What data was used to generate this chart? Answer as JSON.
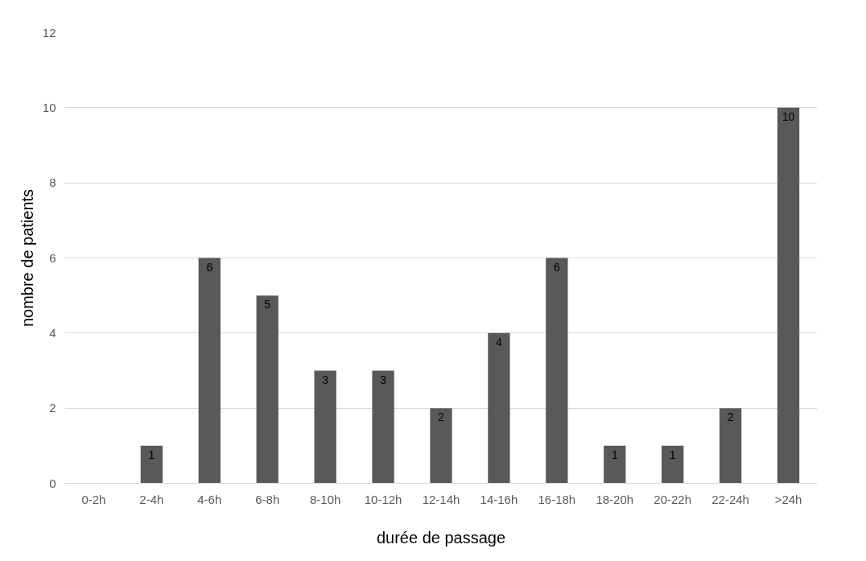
{
  "chart_data": {
    "type": "bar",
    "xlabel": "durée de passage",
    "ylabel": "nombre de patients",
    "categories": [
      "0-2h",
      "2-4h",
      "4-6h",
      "6-8h",
      "8-10h",
      "10-12h",
      "12-14h",
      "14-16h",
      "16-18h",
      "18-20h",
      "20-22h",
      "22-24h",
      ">24h"
    ],
    "values": [
      0,
      1,
      6,
      5,
      3,
      3,
      2,
      4,
      6,
      1,
      1,
      2,
      10
    ],
    "value_labels": [
      null,
      "1",
      "6",
      "5",
      "3",
      "3",
      "2",
      "4",
      "6",
      "1",
      "1",
      "2",
      "10"
    ],
    "color": "#595959",
    "ylim": [
      0,
      12
    ],
    "yticks": [
      0,
      2,
      4,
      6,
      8,
      10,
      12
    ],
    "grid": "y"
  }
}
